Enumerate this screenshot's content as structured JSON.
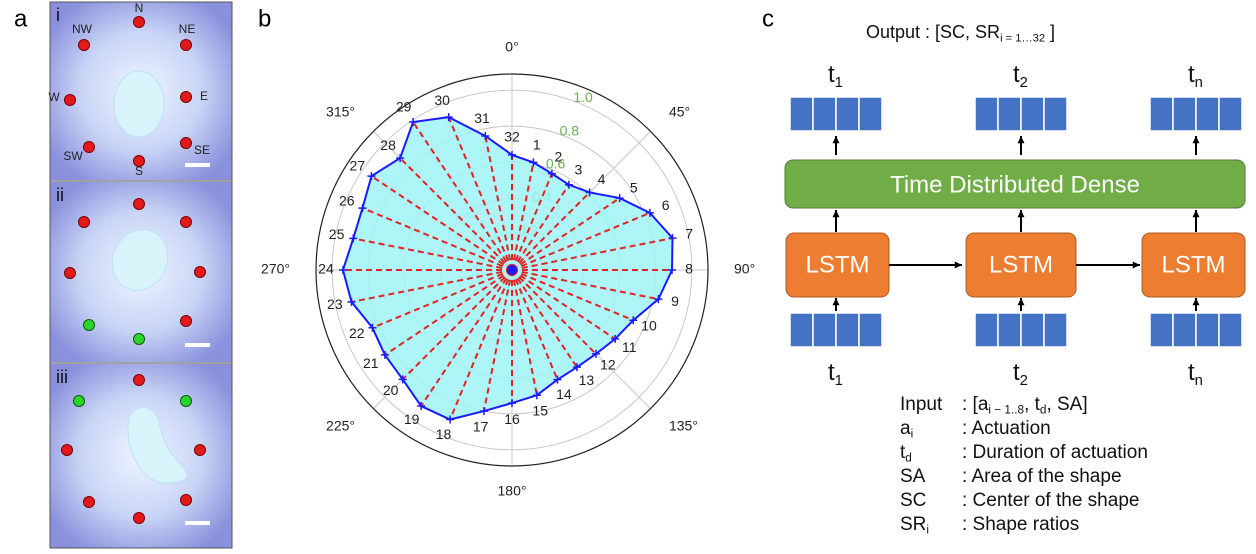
{
  "panel_a": {
    "label": "a",
    "subpanels": [
      {
        "label": "i",
        "directions": [
          "N",
          "NW",
          "NE",
          "W",
          "E",
          "SW",
          "SE",
          "S"
        ]
      },
      {
        "label": "ii"
      },
      {
        "label": "iii"
      }
    ]
  },
  "chart_data": {
    "type": "polar",
    "panel_label": "b",
    "categories": [
      "1",
      "2",
      "3",
      "4",
      "5",
      "6",
      "7",
      "8",
      "9",
      "10",
      "11",
      "12",
      "13",
      "14",
      "15",
      "16",
      "17",
      "18",
      "19",
      "20",
      "21",
      "22",
      "23",
      "24",
      "25",
      "26",
      "27",
      "28",
      "29",
      "30",
      "31",
      "32"
    ],
    "values": [
      0.61,
      0.58,
      0.57,
      0.61,
      0.72,
      0.83,
      0.91,
      0.89,
      0.83,
      0.73,
      0.69,
      0.66,
      0.65,
      0.66,
      0.71,
      0.74,
      0.8,
      0.9,
      0.91,
      0.86,
      0.85,
      0.84,
      0.91,
      0.94,
      0.9,
      0.9,
      0.94,
      0.88,
      0.99,
      0.92,
      0.76,
      0.64
    ],
    "color": "#1a1aff",
    "fill": "#9ff3f5",
    "spoke_color": "#e32222",
    "rlim": [
      0,
      1.09
    ],
    "rticks": [
      0.2,
      0.4,
      0.6,
      0.8,
      {
        "value": 1.0,
        "label": "1.0"
      }
    ],
    "rtick_color": "#6ab04c",
    "thetaticks": [
      {
        "value": 0,
        "label": "0°"
      },
      {
        "value": 45,
        "label": "45°"
      },
      {
        "value": 90,
        "label": "90°"
      },
      {
        "value": 135,
        "label": "135°"
      },
      {
        "value": 180,
        "label": "180°"
      },
      {
        "value": 225,
        "label": "225°"
      },
      {
        "value": 270,
        "label": "270°"
      },
      {
        "value": 315,
        "label": "315°"
      }
    ],
    "grid": true
  },
  "panel_c": {
    "label": "c",
    "output": [
      {
        "text": "Output : [SC, SR"
      },
      {
        "sub": "i = 1…32"
      },
      {
        "text": " ]"
      }
    ],
    "top_steps": [
      [
        {
          "text": "t"
        },
        {
          "sub": "1"
        }
      ],
      [
        {
          "text": "t"
        },
        {
          "sub": "2"
        }
      ],
      [
        {
          "text": "t"
        },
        {
          "sub": "n"
        }
      ]
    ],
    "dense": "Time Distributed Dense",
    "lstm": [
      "LSTM",
      "LSTM",
      "LSTM"
    ],
    "bottom_steps": [
      [
        {
          "text": "t"
        },
        {
          "sub": "1"
        }
      ],
      [
        {
          "text": "t"
        },
        {
          "sub": "2"
        }
      ],
      [
        {
          "text": "t"
        },
        {
          "sub": "n"
        }
      ]
    ],
    "legend": [
      {
        "term": [
          {
            "text": "Input"
          }
        ],
        "desc": [
          {
            "text": ": [a"
          },
          {
            "sub": "i − 1..8"
          },
          {
            "text": ", t"
          },
          {
            "sub": "d"
          },
          {
            "text": ", SA]"
          }
        ]
      },
      {
        "term": [
          {
            "text": "a"
          },
          {
            "sub": "i"
          }
        ],
        "desc": [
          {
            "text": ": Actuation"
          }
        ]
      },
      {
        "term": [
          {
            "text": "t"
          },
          {
            "sub": "d"
          }
        ],
        "desc": [
          {
            "text": ": Duration of actuation"
          }
        ]
      },
      {
        "term": [
          {
            "text": "SA"
          }
        ],
        "desc": [
          {
            "text": ": Area of the shape"
          }
        ]
      },
      {
        "term": [
          {
            "text": "SC"
          }
        ],
        "desc": [
          {
            "text": ": Center of the shape"
          }
        ]
      },
      {
        "term": [
          {
            "text": "SR"
          },
          {
            "sub": "i"
          }
        ],
        "desc": [
          {
            "text": ": Shape ratios"
          }
        ]
      }
    ]
  }
}
